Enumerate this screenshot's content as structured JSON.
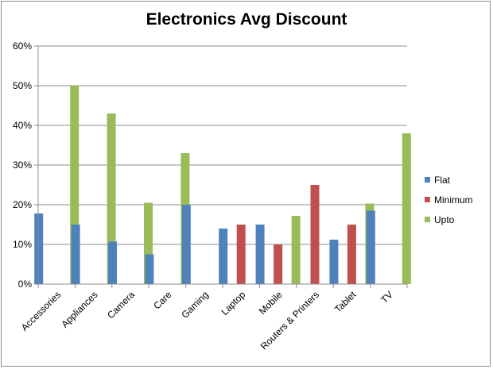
{
  "chart_data": {
    "type": "bar",
    "title": "Electronics Avg Discount",
    "categories": [
      "Accessories",
      "Appliances",
      "Camera",
      "Care",
      "Gaming",
      "Laptop",
      "Mobile",
      "Routers & Printers",
      "Tablet",
      "TV"
    ],
    "series": [
      {
        "name": "Flat",
        "color": "#4f81bd",
        "values": [
          17.8,
          15.0,
          10.7,
          7.5,
          20.0,
          14.0,
          15.0,
          null,
          11.2,
          18.5
        ]
      },
      {
        "name": "Minimum",
        "color": "#c0504d",
        "values": [
          null,
          null,
          null,
          null,
          null,
          15.0,
          10.0,
          25.0,
          15.0,
          null
        ]
      },
      {
        "name": "Upto",
        "color": "#9bbb59",
        "values": [
          50.0,
          43.0,
          20.5,
          33.0,
          null,
          null,
          17.2,
          null,
          20.3,
          38.0
        ]
      }
    ],
    "ylim": [
      0,
      60
    ],
    "yticks": [
      "0%",
      "10%",
      "20%",
      "30%",
      "40%",
      "50%",
      "60%"
    ],
    "grid": true,
    "legend_position": "right"
  }
}
